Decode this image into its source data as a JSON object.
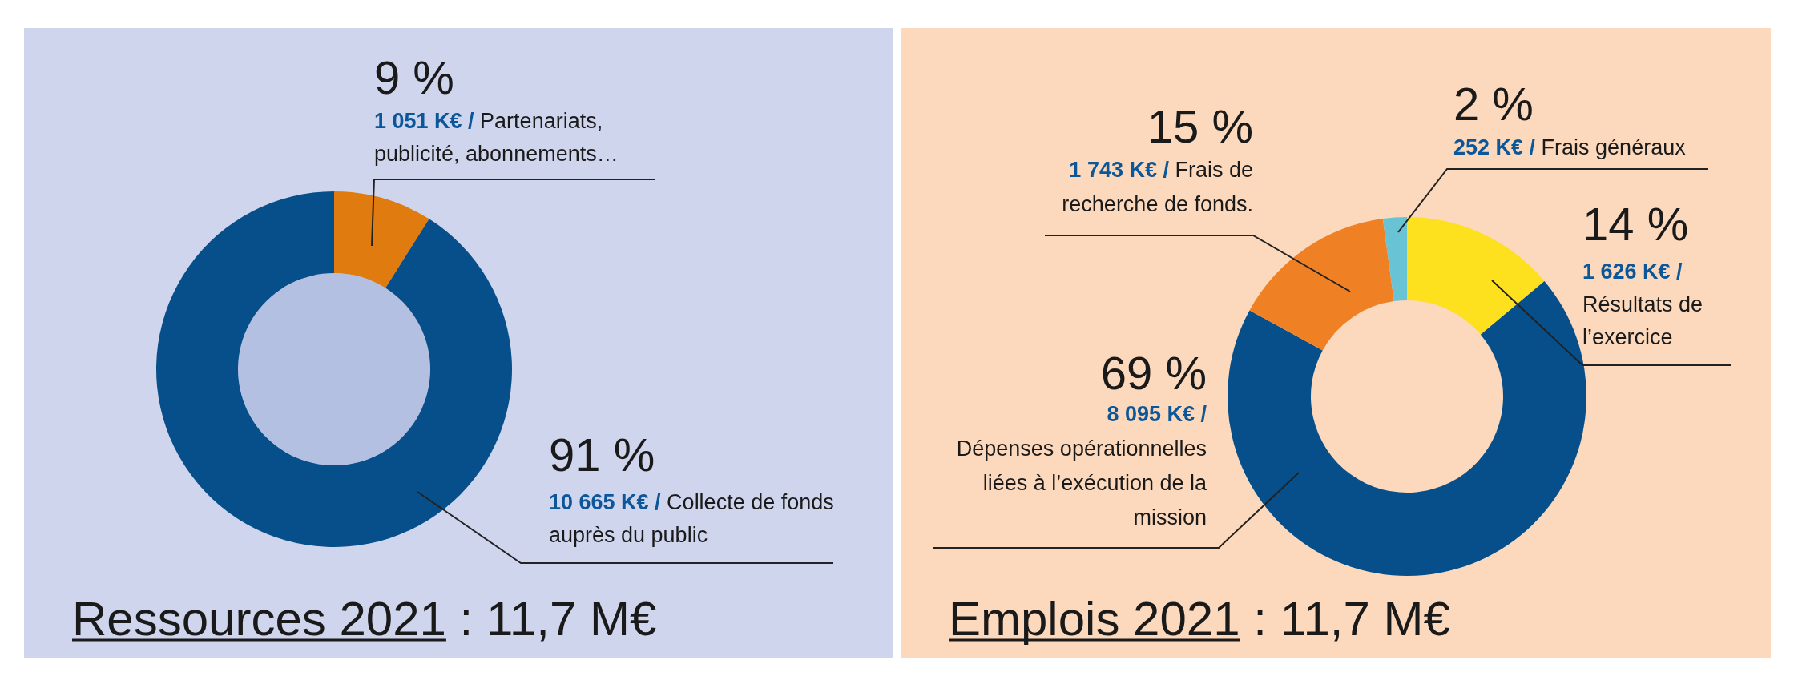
{
  "chart_data": [
    {
      "type": "donut",
      "title": "Ressources 2021 : 11,7 M€",
      "categories": [
        "Partenariats, publicité, abonnements…",
        "Collecte de fonds auprès du public"
      ],
      "values": [
        1051,
        10665
      ],
      "colors": [
        "#e07b10",
        "#064f8a"
      ],
      "value_labels": [
        "1 051 K€ /",
        "10 665 K€ /"
      ],
      "annotations": [
        "9 %",
        "91 %"
      ]
    },
    {
      "type": "donut",
      "title": "Emplois 2021 : 11,7 M€",
      "categories": [
        "Résultats de l’exercice",
        "Dépenses opérationnelles liées à l’exécution de la mission",
        "Frais de recherche de fonds.",
        "Frais généraux"
      ],
      "values": [
        1626,
        8095,
        1743,
        252
      ],
      "colors": [
        "#fde01e",
        "#064f8a",
        "#f08024",
        "#68c3d5"
      ],
      "value_labels": [
        "1 626 K€ /",
        "8 095 K€ /",
        "1 743 K€ /",
        "252 K€ /"
      ],
      "annotations": [
        "14 %",
        "69 %",
        "15 %",
        "2 %"
      ]
    }
  ]
}
